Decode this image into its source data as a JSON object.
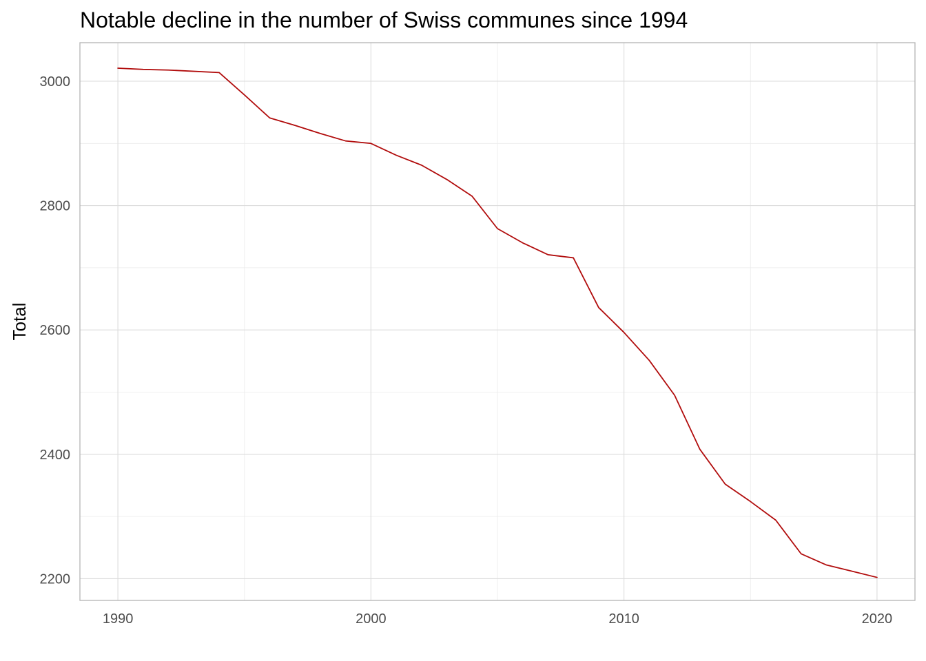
{
  "chart_data": {
    "type": "line",
    "title": "Notable decline in the number of Swiss communes since 1994",
    "xlabel": "",
    "ylabel": "Total",
    "xlim": [
      1988.5,
      2021.5
    ],
    "ylim": [
      2165,
      3062
    ],
    "x_ticks": [
      1990,
      2000,
      2010,
      2020
    ],
    "y_ticks": [
      2200,
      2400,
      2600,
      2800,
      3000
    ],
    "grid": true,
    "line_color": "#b10c0c",
    "series": [
      {
        "x": [
          1990,
          1991,
          1992,
          1993,
          1994,
          1995,
          1996,
          1997,
          1998,
          1999,
          2000,
          2001,
          2002,
          2003,
          2004,
          2005,
          2006,
          2007,
          2008,
          2009,
          2010,
          2011,
          2012,
          2013,
          2014,
          2015,
          2016,
          2017,
          2018,
          2019,
          2020
        ],
        "values": [
          3021,
          3019,
          3018,
          3016,
          3014,
          2978,
          2941,
          2929,
          2916,
          2904,
          2900,
          2881,
          2865,
          2842,
          2815,
          2763,
          2740,
          2721,
          2716,
          2636,
          2596,
          2551,
          2495,
          2408,
          2352,
          2324,
          2294,
          2240,
          2222,
          2212,
          2202
        ]
      }
    ]
  }
}
